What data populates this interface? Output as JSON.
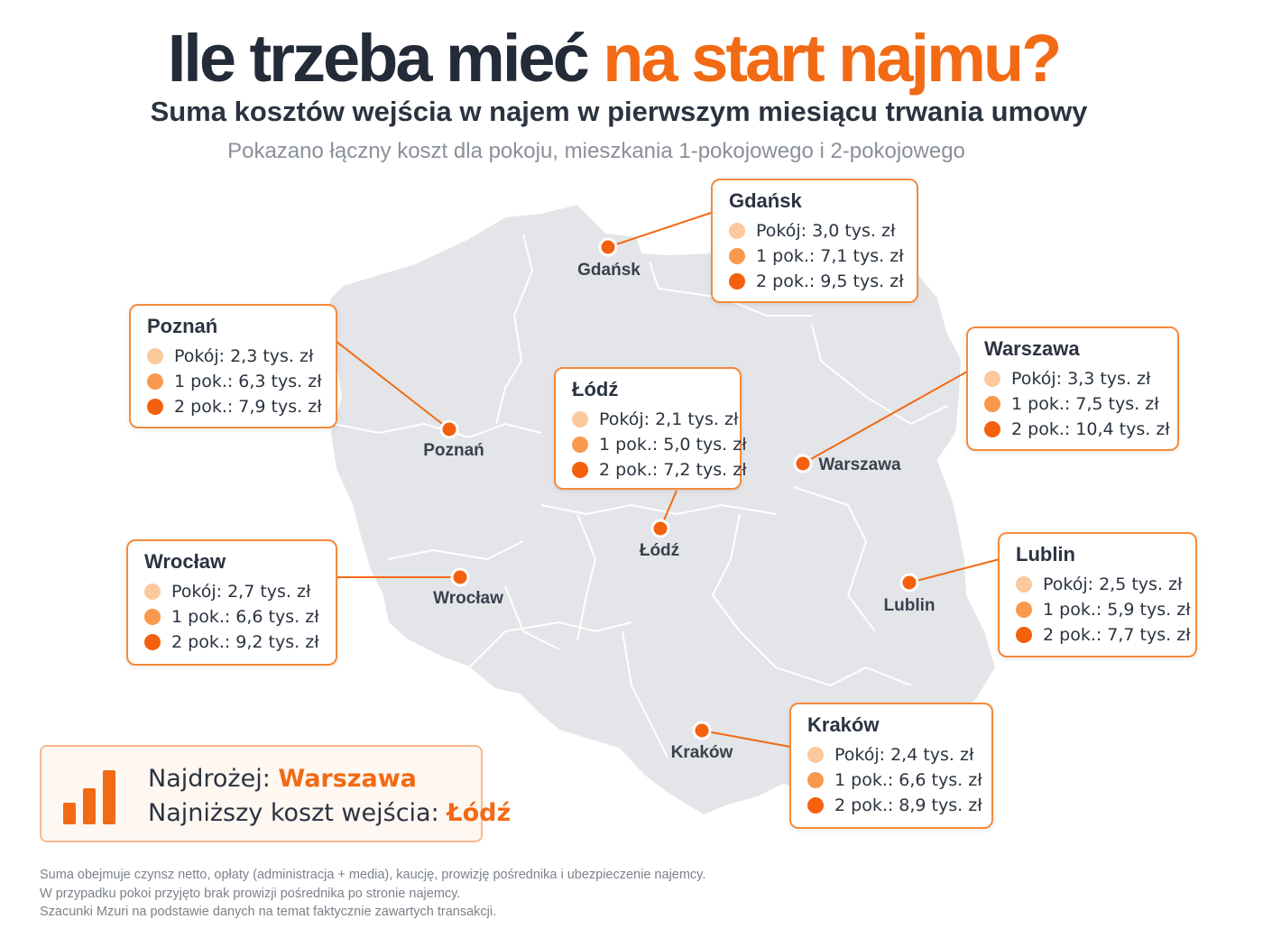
{
  "title": {
    "part1": "Ile trzeba mieć ",
    "part2": "na start najmu?"
  },
  "subtitle": "Suma kosztów wejścia w najem w pierwszym miesiącu trwania umowy",
  "subnote": "Pokazano łączny koszt dla pokoju, mieszkania 1-pokojowego i 2-pokojowego",
  "colors": {
    "accent": "#f26a14",
    "map_fill": "#e3e5e8",
    "room": "#fcc99f",
    "one_room": "#f9994d",
    "two_room": "#f4600e"
  },
  "cities": [
    {
      "name": "Gdańsk",
      "label": "Gdańsk",
      "room": "Pokój: 3,0 tys. zł",
      "one": "1 pok.: 7,1 tys. zł",
      "two": "2 pok.: 9,5 tys. zł"
    },
    {
      "name": "Poznań",
      "label": "Poznań",
      "room": "Pokój: 2,3 tys. zł",
      "one": "1 pok.: 6,3 tys. zł",
      "two": "2 pok.: 7,9 tys. zł"
    },
    {
      "name": "Łódź",
      "label": "Łódź",
      "room": "Pokój: 2,1 tys. zł",
      "one": "1 pok.: 5,0 tys. zł",
      "two": "2 pok.: 7,2 tys. zł"
    },
    {
      "name": "Warszawa",
      "label": "Warszawa",
      "room": "Pokój: 3,3 tys. zł",
      "one": "1 pok.: 7,5 tys. zł",
      "two": "2 pok.: 10,4 tys. zł"
    },
    {
      "name": "Wrocław",
      "label": "Wrocław",
      "room": "Pokój: 2,7 tys. zł",
      "one": "1 pok.: 6,6 tys. zł",
      "two": "2 pok.: 9,2 tys. zł"
    },
    {
      "name": "Lublin",
      "label": "Lublin",
      "room": "Pokój: 2,5 tys. zł",
      "one": "1 pok.: 5,9 tys. zł",
      "two": "2 pok.: 7,7 tys. zł"
    },
    {
      "name": "Kraków",
      "label": "Kraków",
      "room": "Pokój: 2,4 tys. zł",
      "one": "1 pok.: 6,6 tys. zł",
      "two": "2 pok.: 8,9 tys. zł"
    }
  ],
  "summary": {
    "icon": "bar-chart-icon",
    "expensive_label": "Najdrożej: ",
    "expensive_city": "Warszawa",
    "cheapest_label": "Najniższy koszt wejścia: ",
    "cheapest_city": "Łódź"
  },
  "footnote": [
    "Suma obejmuje czynsz netto, opłaty (administracja + media), kaucję, prowizję pośrednika i ubezpieczenie najemcy.",
    "W przypadku pokoi przyjęto brak prowizji pośrednika po stronie najemcy.",
    "Szacunki Mzuri na podstawie danych na temat faktycznie zawartych transakcji."
  ]
}
